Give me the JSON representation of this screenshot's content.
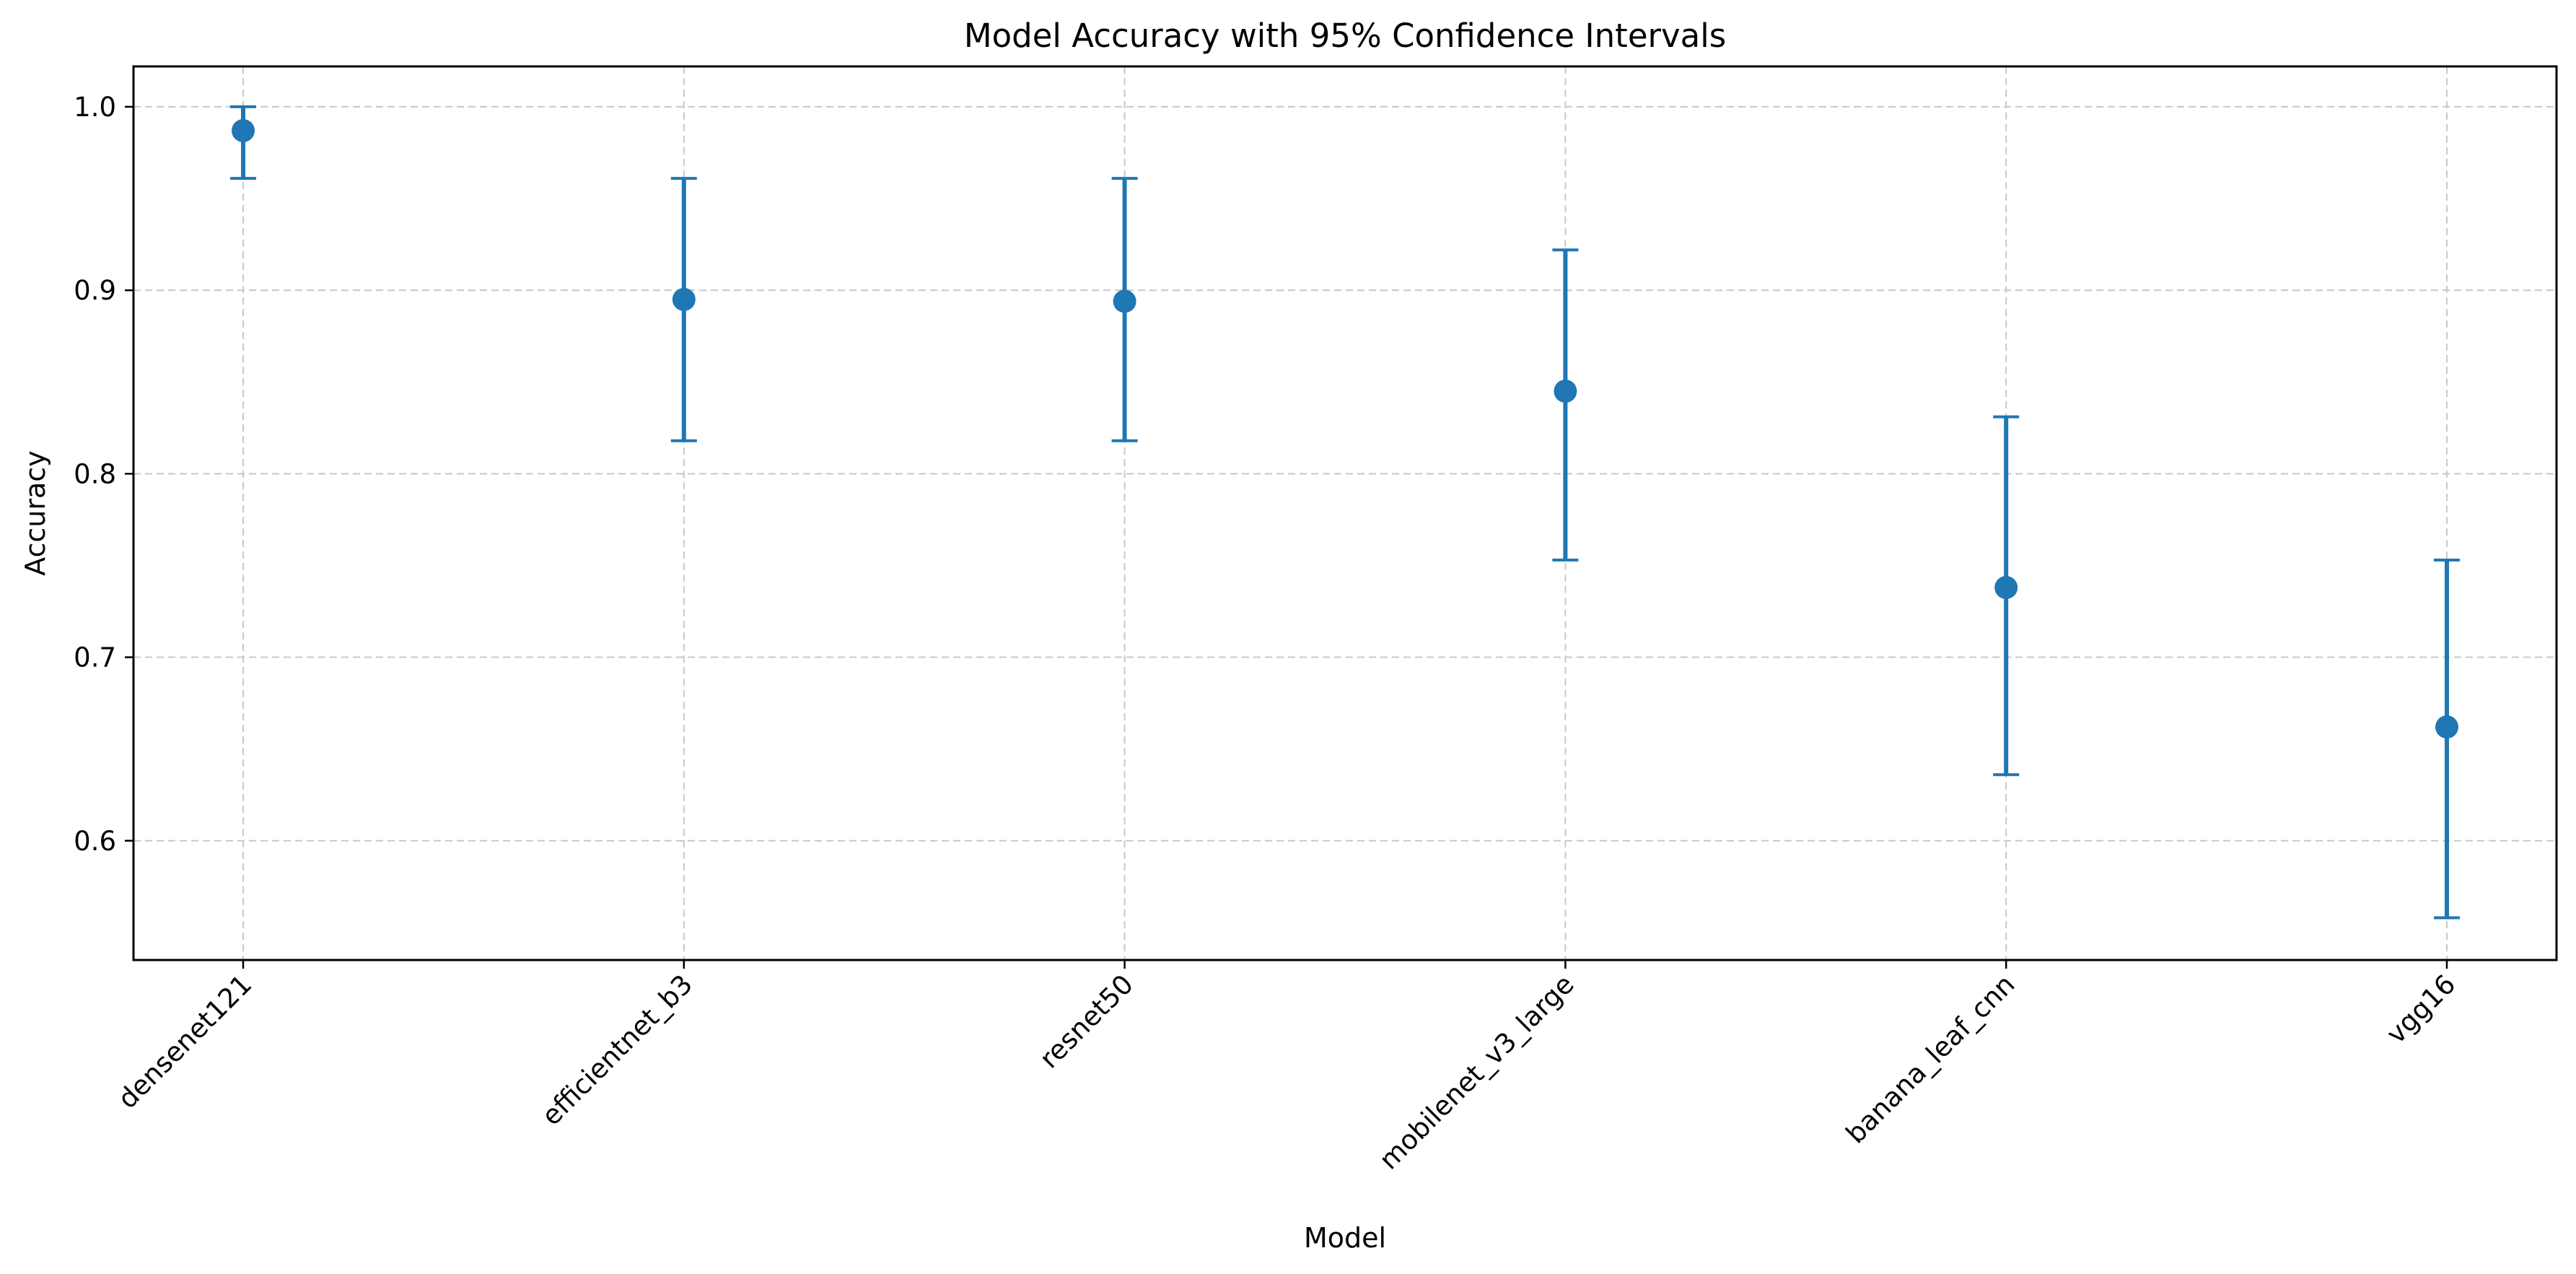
{
  "chart_data": {
    "type": "scatter",
    "title": "Model Accuracy with 95% Confidence Intervals",
    "xlabel": "Model",
    "ylabel": "Accuracy",
    "categories": [
      "densenet121",
      "efficientnet_b3",
      "resnet50",
      "mobilenet_v3_large",
      "banana_leaf_cnn",
      "vgg16"
    ],
    "values": [
      0.987,
      0.895,
      0.894,
      0.845,
      0.738,
      0.662
    ],
    "ci_lower": [
      0.961,
      0.818,
      0.818,
      0.753,
      0.636,
      0.558
    ],
    "ci_upper": [
      1.0,
      0.961,
      0.961,
      0.922,
      0.831,
      0.753
    ],
    "ylim": [
      0.535,
      1.022
    ],
    "yticks": [
      "0.6",
      "0.7",
      "0.8",
      "0.9",
      "1.0"
    ],
    "grid": true,
    "legend": "none",
    "colors": {
      "series": "#1f77b4",
      "grid": "#c8c8c8",
      "axes": "#000000"
    }
  }
}
